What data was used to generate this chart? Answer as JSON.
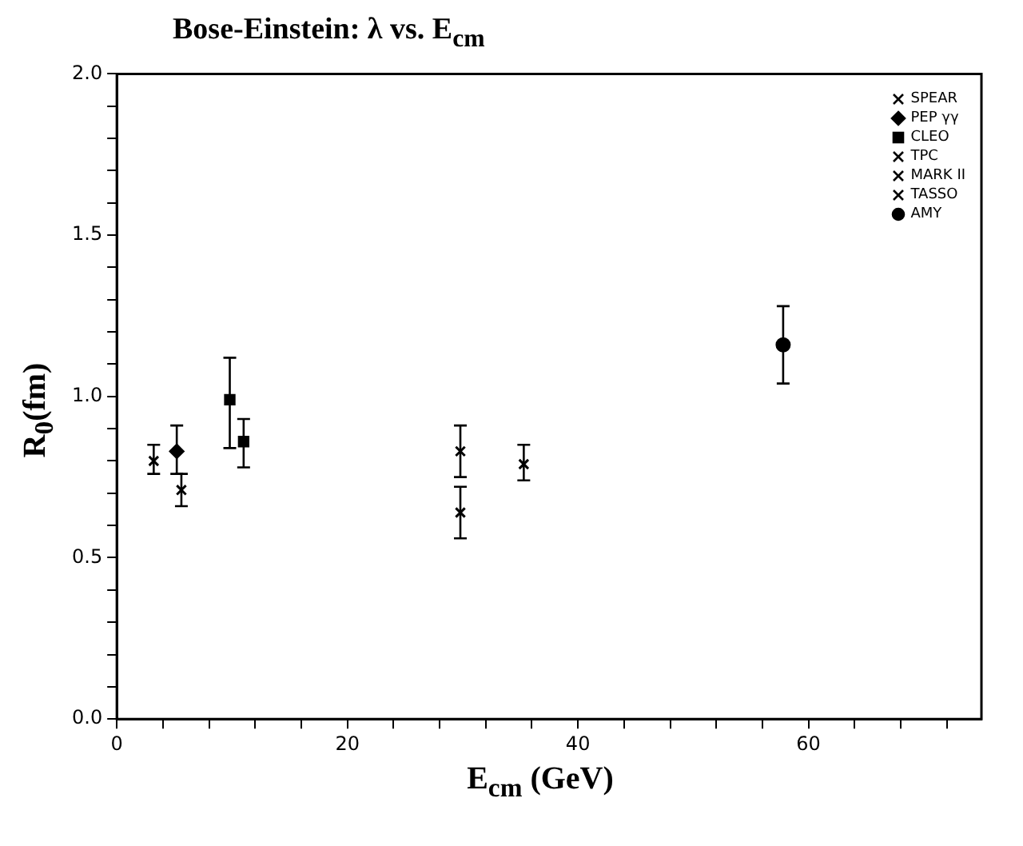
{
  "chart_data": {
    "type": "scatter",
    "title": "Bose-Einstein: λ vs. E$_{cm}$",
    "xlabel": "E$_{cm}$ (GeV)",
    "ylabel": "R$_{0}$(fm)",
    "xlim": [
      0,
      75
    ],
    "ylim": [
      0,
      2
    ],
    "xticks": [
      0,
      {
        "value": 4,
        "label": null
      },
      {
        "value": 8,
        "label": null
      },
      {
        "value": 12,
        "label": null
      },
      {
        "value": 16,
        "label": null
      },
      20,
      {
        "value": 24,
        "label": null
      },
      {
        "value": 28,
        "label": null
      },
      {
        "value": 32,
        "label": null
      },
      {
        "value": 36,
        "label": null
      },
      40,
      {
        "value": 44,
        "label": null
      },
      {
        "value": 48,
        "label": null
      },
      {
        "value": 52,
        "label": null
      },
      {
        "value": 56,
        "label": null
      },
      60,
      {
        "value": 64,
        "label": null
      },
      {
        "value": 68,
        "label": null
      },
      {
        "value": 72,
        "label": null
      }
    ],
    "yticks": [
      {
        "value": 0,
        "label": "0.0"
      },
      {
        "value": 0.1,
        "label": null
      },
      {
        "value": 0.2,
        "label": null
      },
      {
        "value": 0.3,
        "label": null
      },
      {
        "value": 0.4,
        "label": null
      },
      0.5,
      {
        "value": 0.6,
        "label": null
      },
      {
        "value": 0.7,
        "label": null
      },
      {
        "value": 0.8,
        "label": null
      },
      {
        "value": 0.9,
        "label": null
      },
      {
        "value": 1,
        "label": "1.0"
      },
      {
        "value": 1.1,
        "label": null
      },
      {
        "value": 1.2,
        "label": null
      },
      {
        "value": 1.3,
        "label": null
      },
      {
        "value": 1.4,
        "label": null
      },
      1.5,
      {
        "value": 1.6,
        "label": null
      },
      {
        "value": 1.7,
        "label": null
      },
      {
        "value": 1.8,
        "label": null
      },
      {
        "value": 1.9,
        "label": null
      },
      {
        "value": 2,
        "label": "2.0"
      }
    ],
    "grid": false,
    "legend": "top right",
    "series": [
      {
        "name": "SPEAR",
        "color": "#000000",
        "marker": "cross",
        "x": [
          3.2
        ],
        "values": [
          0.8
        ],
        "errors": [
          [
            0.76,
            0.85
          ]
        ]
      },
      {
        "name": "PEP γγ",
        "color": "#000000",
        "marker": "diamond",
        "x": [
          5.2
        ],
        "values": [
          0.83
        ],
        "errors": [
          [
            0.76,
            0.91
          ]
        ]
      },
      {
        "name": "CLEO",
        "color": "#000000",
        "marker": "square",
        "x": [
          9.8,
          11.0
        ],
        "values": [
          0.99,
          0.86
        ],
        "errors": [
          [
            0.84,
            1.12
          ],
          [
            0.78,
            0.93
          ]
        ]
      },
      {
        "name": "TPC",
        "color": "#000000",
        "marker": "cross",
        "x": [
          29.8
        ],
        "values": [
          0.64
        ],
        "errors": [
          [
            0.56,
            0.72
          ]
        ]
      },
      {
        "name": "MARK II",
        "color": "#000000",
        "marker": "cross",
        "x": [
          5.6,
          29.8
        ],
        "values": [
          0.71,
          0.83
        ],
        "errors": [
          [
            0.66,
            0.76
          ],
          [
            0.75,
            0.91
          ]
        ]
      },
      {
        "name": "TASSO",
        "color": "#000000",
        "marker": "cross",
        "x": [
          35.3
        ],
        "values": [
          0.79
        ],
        "errors": [
          [
            0.74,
            0.85
          ]
        ]
      },
      {
        "name": "AMY",
        "color": "#000000",
        "marker": "circle",
        "x": [
          57.8
        ],
        "values": [
          1.16
        ],
        "errors": [
          [
            1.04,
            1.28
          ]
        ]
      }
    ]
  }
}
